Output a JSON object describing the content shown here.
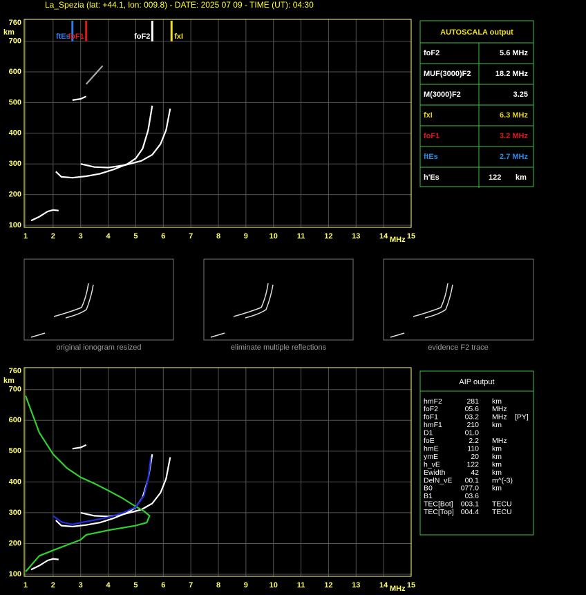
{
  "header": {
    "title": "La_Spezia (lat: +44.1, lon: 009.8) - DATE: 2025 07 09 - TIME (UT): 04:30"
  },
  "chart_data": [
    {
      "type": "ionogram",
      "x_label": "MHz",
      "y_label": "km",
      "xlim": [
        1,
        15
      ],
      "ylim": [
        100,
        760
      ],
      "xticks": [
        1,
        2,
        3,
        4,
        5,
        6,
        7,
        8,
        9,
        10,
        11,
        12,
        13,
        14,
        15
      ],
      "yticks": [
        100,
        200,
        300,
        400,
        500,
        600,
        700,
        760
      ],
      "grid": true,
      "markers": [
        {
          "name": "ftEs",
          "x": 2.7,
          "color": "#2a7de8"
        },
        {
          "name": "foF1",
          "x": 3.2,
          "color": "#e01818"
        },
        {
          "name": "foF2",
          "x": 5.6,
          "color": "#ffffff"
        },
        {
          "name": "fxI",
          "x": 6.3,
          "color": "#f0e020"
        }
      ],
      "series": [
        {
          "color": "#ffffff",
          "x": [
            2.1,
            2.3,
            2.7,
            3.2,
            3.7,
            4.2,
            4.7,
            5.0,
            5.25,
            5.45,
            5.6
          ],
          "values": [
            275,
            258,
            255,
            260,
            268,
            282,
            300,
            318,
            350,
            410,
            490
          ]
        },
        {
          "color": "#ffffff",
          "x": [
            3.0,
            3.5,
            4.0,
            4.6,
            5.2,
            5.6,
            5.9,
            6.1,
            6.25
          ],
          "values": [
            300,
            290,
            288,
            296,
            310,
            330,
            365,
            410,
            480
          ]
        },
        {
          "color": "#ffffff",
          "x": [
            1.2,
            1.5,
            1.8,
            2.0,
            2.2
          ],
          "values": [
            115,
            128,
            145,
            150,
            148
          ]
        },
        {
          "color": "#ffffff",
          "x": [
            2.7,
            3.0,
            3.2
          ],
          "values": [
            508,
            512,
            520
          ]
        },
        {
          "color": "#aaaaaa",
          "x": [
            3.2,
            3.5,
            3.8
          ],
          "values": [
            560,
            590,
            620
          ]
        }
      ]
    },
    {
      "type": "ionogram",
      "x_label": "MHz",
      "y_label": "km",
      "xlim": [
        1,
        15
      ],
      "ylim": [
        100,
        760
      ],
      "xticks": [
        1,
        2,
        3,
        4,
        5,
        6,
        7,
        8,
        9,
        10,
        11,
        12,
        13,
        14,
        15
      ],
      "yticks": [
        100,
        200,
        300,
        400,
        500,
        600,
        700,
        760
      ],
      "grid": true,
      "series": [
        {
          "color": "#ffffff",
          "x": [
            2.1,
            2.3,
            2.7,
            3.2,
            3.7,
            4.2,
            4.7,
            5.0,
            5.25,
            5.45,
            5.6
          ],
          "values": [
            275,
            258,
            255,
            260,
            268,
            282,
            300,
            318,
            350,
            410,
            490
          ]
        },
        {
          "color": "#ffffff",
          "x": [
            3.0,
            3.5,
            4.0,
            4.6,
            5.2,
            5.6,
            5.9,
            6.1,
            6.25
          ],
          "values": [
            300,
            290,
            288,
            296,
            310,
            330,
            365,
            410,
            480
          ]
        },
        {
          "color": "#ffffff",
          "x": [
            1.2,
            1.5,
            1.8,
            2.0,
            2.2
          ],
          "values": [
            115,
            128,
            145,
            150,
            148
          ]
        },
        {
          "color": "#ffffff",
          "x": [
            2.7,
            3.0,
            3.2
          ],
          "values": [
            508,
            512,
            520
          ]
        },
        {
          "color": "#30d030",
          "x": [
            1.0,
            1.5,
            2.0,
            2.5,
            3.0,
            3.5,
            4.0,
            4.5,
            5.0,
            5.3,
            5.5,
            5.4,
            5.0,
            4.0,
            3.2,
            3.0,
            2.0,
            1.5,
            1.0
          ],
          "values": [
            680,
            560,
            490,
            445,
            415,
            395,
            372,
            348,
            320,
            305,
            290,
            268,
            258,
            243,
            228,
            212,
            178,
            160,
            108
          ]
        },
        {
          "color": "#2030e0",
          "x": [
            2.0,
            2.3,
            2.7,
            3.0,
            3.5,
            4.0,
            4.5,
            5.0,
            5.3,
            5.45,
            5.55
          ],
          "values": [
            290,
            270,
            262,
            268,
            276,
            285,
            298,
            318,
            355,
            410,
            480
          ]
        }
      ]
    }
  ],
  "thumbnails": [
    "original ionogram resized",
    "eliminate multiple reflections",
    "evidence F2 trace"
  ],
  "autoscala": {
    "title": "AUTOSCALA output",
    "rows": [
      {
        "label": "foF2",
        "value": "5.6 MHz",
        "color": "#ffffff"
      },
      {
        "label": "MUF(3000)F2",
        "value": "18.2 MHz",
        "color": "#ffffff"
      },
      {
        "label": "M(3000)F2",
        "value": "3.25",
        "color": "#ffffff"
      },
      {
        "label": "fxI",
        "value": "6.3 MHz",
        "color": "#e0d020"
      },
      {
        "label": "foF1",
        "value": "3.2 MHz",
        "color": "#e01818"
      },
      {
        "label": "ftEs",
        "value": "2.7 MHz",
        "color": "#2a8ae8"
      },
      {
        "label": "h'Es",
        "value": "122",
        "unit": "km",
        "color": "#ffffff"
      }
    ]
  },
  "aip": {
    "title": "AIP output",
    "rows": [
      [
        "hmF2",
        "281",
        "km"
      ],
      [
        "foF2",
        "05.6",
        "MHz"
      ],
      [
        "foF1",
        "03.2",
        "MHz",
        "[PY]"
      ],
      [
        "hmF1",
        "210",
        "km"
      ],
      [
        "D1",
        "01.0"
      ],
      [
        "foE",
        "2.2",
        "MHz"
      ],
      [
        "hmE",
        "110",
        "km"
      ],
      [
        "ymE",
        "20",
        "km"
      ],
      [
        "h_vE",
        "122",
        "km"
      ],
      [
        "Ewidth",
        "42",
        "km"
      ],
      [
        "DelN_vE",
        "00.1",
        "m^(-3)"
      ],
      [
        "B0",
        "077.0",
        "km"
      ],
      [
        "B1",
        "03.6"
      ],
      [
        "TEC[Bot]",
        "003.1",
        "TECU"
      ],
      [
        "TEC[Top]",
        "004.4",
        "TECU"
      ]
    ]
  }
}
